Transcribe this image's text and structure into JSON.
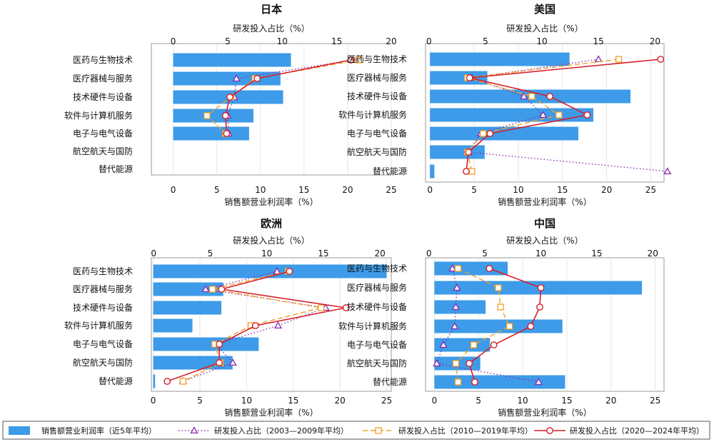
{
  "categories": [
    "医药与生物技术",
    "医疗器械与服务",
    "技术硬件与设备",
    "软件与计算机服务",
    "电子与电气设备",
    "航空航天与国防",
    "替代能源"
  ],
  "chart_data": [
    {
      "type": "bar",
      "title": "日本",
      "xlabel": "销售额营业利润率（%）",
      "x2label": "研发投入占比（%）",
      "xlim": [
        -2.5,
        25
      ],
      "x_ticks": [
        0,
        5,
        10,
        15,
        20,
        25
      ],
      "x2lim": [
        -2,
        20
      ],
      "x2_ticks": [
        0,
        5,
        10,
        15,
        20
      ],
      "bars": [
        13.5,
        12.3,
        12.6,
        9.2,
        8.7,
        null,
        null
      ],
      "series": [
        {
          "name": "研发投入占比（2003—2009年平均）",
          "values": [
            16.5,
            5.8,
            5.6,
            5.0,
            5.1,
            null,
            null
          ]
        },
        {
          "name": "研发投入占比（2010—2019年平均）",
          "values": [
            17.0,
            7.5,
            5.3,
            3.1,
            4.8,
            null,
            null
          ]
        },
        {
          "name": "研发投入占比（2020—2024年平均）",
          "values": [
            16.3,
            7.7,
            5.2,
            4.8,
            4.9,
            null,
            null
          ]
        }
      ]
    },
    {
      "type": "bar",
      "title": "美国",
      "xlabel": "销售额营业利润率（%）",
      "x2label": "研发投入占比（%）",
      "xlim": [
        -0.5,
        26.5
      ],
      "x_ticks": [
        0,
        5,
        10,
        15,
        20,
        25
      ],
      "x2lim": [
        -0.3,
        20.8
      ],
      "x2_ticks": [
        0,
        5,
        10,
        15,
        20
      ],
      "bars": [
        15.8,
        6.5,
        22.7,
        18.5,
        16.8,
        6.2,
        0.5
      ],
      "series": [
        {
          "name": "研发投入占比（2003—2009年平均）",
          "values": [
            15.0,
            3.8,
            8.4,
            10.1,
            4.6,
            3.5,
            21.1
          ]
        },
        {
          "name": "研发投入占比（2010—2019年平均）",
          "values": [
            16.8,
            3.4,
            9.1,
            11.5,
            4.8,
            3.4,
            3.8
          ]
        },
        {
          "name": "研发投入占比（2020—2024年平均）",
          "values": [
            20.5,
            3.6,
            10.7,
            14.0,
            5.4,
            3.5,
            3.3
          ]
        }
      ]
    },
    {
      "type": "bar",
      "title": "欧洲",
      "xlabel": "销售额营业利润率（%）",
      "x2label": "研发投入占比（%）",
      "xlim": [
        -0.2,
        25.5
      ],
      "x_ticks": [
        0,
        5,
        10,
        15,
        20,
        25
      ],
      "x2lim": [
        -0.2,
        21
      ],
      "x2_ticks": [
        0,
        5,
        10,
        15,
        20
      ],
      "bars": [
        25.0,
        7.5,
        7.3,
        4.2,
        11.3,
        8.5,
        0.2
      ],
      "series": [
        {
          "name": "研发投入占比（2003—2009年平均）",
          "values": [
            10.9,
            4.6,
            15.2,
            11.0,
            5.5,
            7.0,
            2.6
          ]
        },
        {
          "name": "研发投入占比（2010—2019年平均）",
          "values": [
            11.9,
            5.2,
            14.8,
            8.6,
            5.4,
            5.9,
            2.6
          ]
        },
        {
          "name": "研发投入占比（2020—2024年平均）",
          "values": [
            12.0,
            6.0,
            17.0,
            9.0,
            5.8,
            5.8,
            1.2
          ]
        }
      ]
    },
    {
      "type": "bar",
      "title": "中国",
      "xlabel": "销售额营业利润率（%）",
      "x2label": "研发投入占比（%）",
      "xlim": [
        -1,
        26
      ],
      "x_ticks": [
        0,
        5,
        10,
        15,
        20,
        25
      ],
      "x2lim": [
        -0.3,
        21
      ],
      "x2_ticks": [
        0,
        5,
        10,
        15,
        20
      ],
      "bars": [
        8.3,
        23.5,
        5.8,
        14.5,
        6.3,
        5.2,
        14.8
      ],
      "series": [
        {
          "name": "研发投入占比（2003—2009年平均）",
          "values": [
            2.1,
            2.5,
            2.4,
            2.3,
            1.3,
            0.7,
            9.8
          ]
        },
        {
          "name": "研发投入占比（2010—2019年平均）",
          "values": [
            2.6,
            6.2,
            6.4,
            7.2,
            4.0,
            2.4,
            2.6
          ]
        },
        {
          "name": "研发投入占比（2020—2024年平均）",
          "values": [
            5.4,
            10.0,
            9.9,
            9.1,
            5.8,
            3.6,
            4.1
          ]
        }
      ]
    }
  ],
  "legend": [
    {
      "name": "销售额营业利润率（近5年平均）",
      "kind": "bar"
    },
    {
      "name": "研发投入占比（2003—2009年平均）",
      "kind": "triangle"
    },
    {
      "name": "研发投入占比（2010—2019年平均）",
      "kind": "square"
    },
    {
      "name": "研发投入占比（2020—2024年平均）",
      "kind": "circle"
    }
  ],
  "colors": {
    "bar": "#3d9be9",
    "s2003": "#8a2bb0",
    "s2010": "#f0a024",
    "s2020": "#d81e2a",
    "frame": "#999999"
  }
}
